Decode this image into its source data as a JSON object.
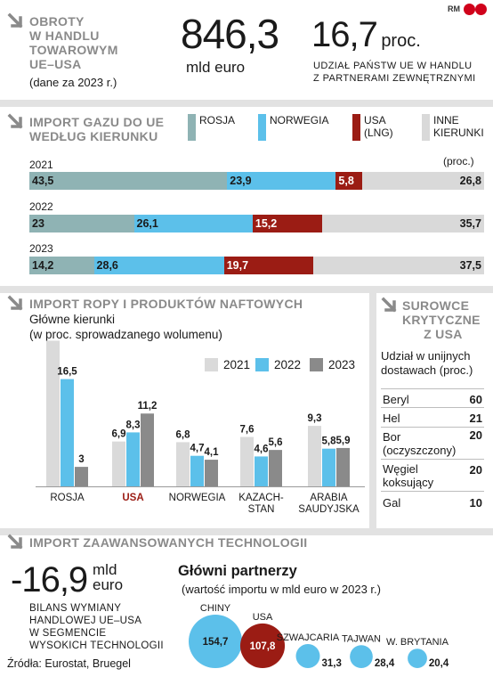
{
  "logo": {
    "text_rm": "RM",
    "text_cp": "CP"
  },
  "trade": {
    "title_lines": [
      "OBROTY",
      "W HANDLU",
      "TOWAROWYM",
      "UE–USA"
    ],
    "subtitle": "(dane za 2023 r.)",
    "value": "846,3",
    "value_unit": "mld euro",
    "share_value": "16,7",
    "share_unit": "proc.",
    "share_caption_lines": [
      "UDZIAŁ PAŃSTW UE W HANDLU",
      "Z PARTNERAMI ZEWNĘTRZNYMI"
    ]
  },
  "gas": {
    "title_lines": [
      "IMPORT GAZU DO UE",
      "WEDŁUG KIERUNKU"
    ],
    "legend": [
      {
        "lines": [
          "ROSJA"
        ],
        "color": "#8fb3b4"
      },
      {
        "lines": [
          "NORWEGIA"
        ],
        "color": "#5cc0ea"
      },
      {
        "lines": [
          "USA",
          "(LNG)"
        ],
        "color": "#9b1c14"
      },
      {
        "lines": [
          "INNE",
          "KIERUNKI"
        ],
        "color": "#d9d9d9"
      }
    ],
    "unit": "(proc.)"
  },
  "oil": {
    "title": "IMPORT ROPY I PRODUKTÓW NAFTOWYCH",
    "subtitle_lines": [
      "Główne kierunki",
      "(w proc. sprowadzanego wolumenu)"
    ],
    "legend": [
      {
        "label": "2021",
        "color": "#dadada"
      },
      {
        "label": "2022",
        "color": "#5cc0ea"
      },
      {
        "label": "2023",
        "color": "#8a8a8a"
      }
    ]
  },
  "critical": {
    "title_lines": [
      "SUROWCE",
      "KRYTYCZNE",
      "Z USA"
    ],
    "subtitle_lines": [
      "Udział w unijnych",
      "dostawach (proc.)"
    ],
    "rows": [
      {
        "name_lines": [
          "Beryl"
        ],
        "value": "60"
      },
      {
        "name_lines": [
          "Hel"
        ],
        "value": "21"
      },
      {
        "name_lines": [
          "Bor",
          "(oczyszczony)"
        ],
        "value": "20"
      },
      {
        "name_lines": [
          "Węgiel",
          "koksujący"
        ],
        "value": "20"
      },
      {
        "name_lines": [
          "Gal"
        ],
        "value": "10"
      }
    ]
  },
  "tech": {
    "title": "IMPORT ZAAWANSOWANYCH TECHNOLOGII",
    "value": "-16,9",
    "value_unit_lines": [
      "mld",
      "euro"
    ],
    "caption_lines": [
      "BILANS WYMIANY",
      "HANDLOWEJ UE–USA",
      "W SEGMENCIE",
      "WYSOKICH TECHNOLOGII"
    ],
    "partners_title": "Główni partnerzy",
    "partners_subtitle": "(wartość importu w mld euro w 2023 r.)"
  },
  "source": "Źródła: Eurostat, Bruegel",
  "chart_data": [
    {
      "type": "bar",
      "orientation": "horizontal-stacked",
      "title": "IMPORT GAZU DO UE WEDŁUG KIERUNKU",
      "unit": "(proc.)",
      "categories": [
        "2021",
        "2022",
        "2023"
      ],
      "series": [
        {
          "name": "ROSJA",
          "values": [
            43.5,
            23,
            14.2
          ],
          "labels": [
            "43,5",
            "23",
            "14,2"
          ],
          "color": "#8fb3b4"
        },
        {
          "name": "NORWEGIA",
          "values": [
            23.9,
            26.1,
            28.6
          ],
          "labels": [
            "23,9",
            "26,1",
            "28,6"
          ],
          "color": "#5cc0ea"
        },
        {
          "name": "USA (LNG)",
          "values": [
            5.8,
            15.2,
            19.7
          ],
          "labels": [
            "5,8",
            "15,2",
            "19,7"
          ],
          "color": "#9b1c14"
        },
        {
          "name": "INNE KIERUNKI",
          "values": [
            26.8,
            35.7,
            37.5
          ],
          "labels": [
            "26,8",
            "35,7",
            "37,5"
          ],
          "color": "#d9d9d9"
        }
      ]
    },
    {
      "type": "bar",
      "title": "IMPORT ROPY I PRODUKTÓW NAFTOWYCH",
      "categories": [
        {
          "lines": [
            "ROSJA"
          ],
          "highlight": false
        },
        {
          "lines": [
            "USA"
          ],
          "highlight": true
        },
        {
          "lines": [
            "NORWEGIA"
          ],
          "highlight": false
        },
        {
          "lines": [
            "KAZACH-",
            "STAN"
          ],
          "highlight": false
        },
        {
          "lines": [
            "ARABIA",
            "SAUDYJSKA"
          ],
          "highlight": false
        }
      ],
      "highlight_color": "#9b1c14",
      "series": [
        {
          "name": "2021",
          "values": [
            22.4,
            6.9,
            6.8,
            7.6,
            9.3
          ],
          "labels": [
            "22,4",
            "6,9",
            "6,8",
            "7,6",
            "9,3"
          ],
          "color": "#dadada"
        },
        {
          "name": "2022",
          "values": [
            16.5,
            8.3,
            4.7,
            4.6,
            5.8
          ],
          "labels": [
            "16,5",
            "8,3",
            "4,7",
            "4,6",
            "5,8"
          ],
          "color": "#5cc0ea"
        },
        {
          "name": "2023",
          "values": [
            3,
            11.2,
            4.1,
            5.6,
            5.9
          ],
          "labels": [
            "3",
            "11,2",
            "4,1",
            "5,6",
            "5,9"
          ],
          "color": "#8a8a8a"
        }
      ]
    },
    {
      "type": "bubble",
      "title": "Główni partnerzy",
      "categories": [
        "CHINY",
        "USA",
        "SZWAJCARIA",
        "TAJWAN",
        "W. BRYTANIA"
      ],
      "values": [
        154.7,
        107.8,
        31.3,
        28.4,
        20.4
      ],
      "labels": [
        "154,7",
        "107,8",
        "31,3",
        "28,4",
        "20,4"
      ],
      "colors": [
        "#5cc0ea",
        "#9b1c14",
        "#5cc0ea",
        "#5cc0ea",
        "#5cc0ea"
      ]
    }
  ]
}
